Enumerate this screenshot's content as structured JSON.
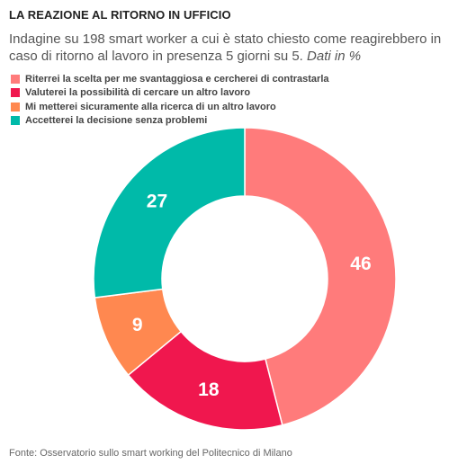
{
  "header": {
    "title": "LA REAZIONE AL RITORNO IN UFFICIO",
    "subtitle": "Indagine su 198 smart worker a cui è stato chiesto come reagirebbero in caso di ritorno al lavoro in presenza 5 giorni su 5.",
    "subtitle_unit": "Dati in %"
  },
  "chart_data": {
    "type": "pie",
    "variant": "donut",
    "unit": "%",
    "categories": [
      "Riterrei la scelta per me svantaggiosa e cercherei di contrastarla",
      "Valuterei la possibilità di cercare un altro lavoro",
      "Mi metterei sicuramente alla ricerca di un altro lavoro",
      "Accetterei la decisione senza problemi"
    ],
    "values": [
      46,
      18,
      9,
      27
    ],
    "colors": [
      "#FF7B7B",
      "#F0174E",
      "#FF8850",
      "#00BAA9"
    ],
    "legend_position": "top-left",
    "start_angle_deg": 0,
    "direction": "clockwise"
  },
  "footer": {
    "source": "Fonte: Osservatorio sullo smart working del Politecnico di Milano"
  }
}
